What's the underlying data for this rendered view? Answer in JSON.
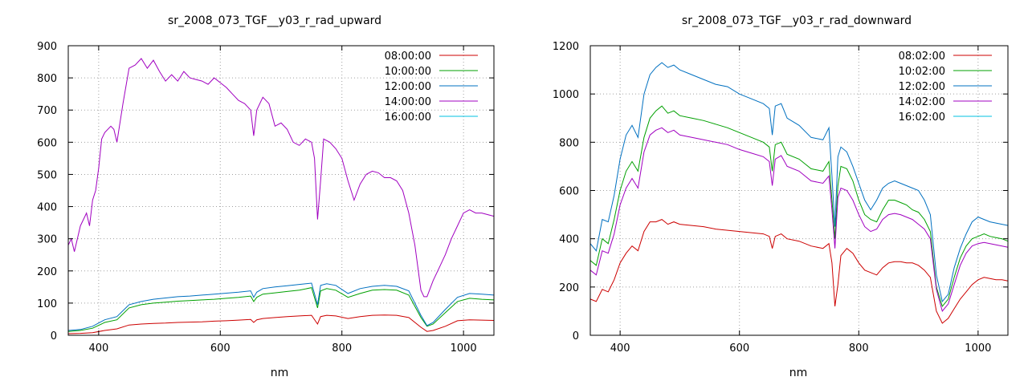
{
  "chart_data": [
    {
      "type": "line",
      "title": "sr_2008_073_TGF__y03_r_rad_upward",
      "xlabel": "nm",
      "ylabel": "",
      "xlim": [
        350,
        1050
      ],
      "ylim": [
        0,
        900
      ],
      "xticks": [
        400,
        600,
        800,
        1000
      ],
      "yticks": [
        0,
        100,
        200,
        300,
        400,
        500,
        600,
        700,
        800,
        900
      ],
      "grid": true,
      "legend_position": "top-right",
      "series": [
        {
          "name": "08:00:00",
          "color": "#cc0000",
          "x": [
            350,
            370,
            390,
            410,
            430,
            450,
            470,
            490,
            510,
            530,
            550,
            570,
            590,
            610,
            630,
            650,
            655,
            660,
            670,
            690,
            710,
            730,
            750,
            760,
            765,
            775,
            790,
            810,
            830,
            850,
            870,
            890,
            910,
            930,
            940,
            950,
            970,
            990,
            1010,
            1030,
            1050
          ],
          "y": [
            5,
            6,
            8,
            15,
            20,
            32,
            35,
            37,
            38,
            40,
            41,
            42,
            44,
            45,
            47,
            49,
            40,
            48,
            52,
            55,
            58,
            60,
            62,
            35,
            58,
            62,
            60,
            52,
            58,
            62,
            63,
            62,
            55,
            25,
            12,
            15,
            28,
            45,
            48,
            47,
            46
          ]
        },
        {
          "name": "10:00:00",
          "color": "#00a000",
          "x": [
            350,
            370,
            390,
            410,
            430,
            450,
            470,
            490,
            510,
            530,
            550,
            570,
            590,
            610,
            630,
            650,
            655,
            660,
            670,
            690,
            710,
            730,
            750,
            760,
            765,
            775,
            790,
            810,
            830,
            850,
            870,
            890,
            910,
            930,
            940,
            950,
            970,
            990,
            1010,
            1030,
            1050
          ],
          "y": [
            12,
            15,
            22,
            40,
            48,
            85,
            95,
            100,
            103,
            106,
            108,
            110,
            112,
            115,
            118,
            122,
            105,
            118,
            128,
            132,
            136,
            140,
            148,
            85,
            138,
            145,
            140,
            118,
            130,
            140,
            142,
            140,
            125,
            55,
            28,
            35,
            70,
            105,
            115,
            112,
            110
          ]
        },
        {
          "name": "12:00:00",
          "color": "#0070c0",
          "x": [
            350,
            370,
            390,
            410,
            430,
            450,
            470,
            490,
            510,
            530,
            550,
            570,
            590,
            610,
            630,
            650,
            655,
            660,
            670,
            690,
            710,
            730,
            750,
            760,
            765,
            775,
            790,
            810,
            830,
            850,
            870,
            890,
            910,
            930,
            940,
            950,
            970,
            990,
            1010,
            1030,
            1050
          ],
          "y": [
            15,
            18,
            28,
            48,
            58,
            95,
            105,
            112,
            116,
            120,
            122,
            125,
            128,
            131,
            134,
            138,
            118,
            134,
            145,
            150,
            154,
            158,
            162,
            95,
            155,
            160,
            155,
            130,
            145,
            152,
            155,
            152,
            138,
            62,
            30,
            40,
            80,
            118,
            130,
            128,
            125
          ]
        },
        {
          "name": "14:00:00",
          "color": "#a000c0",
          "x": [
            350,
            355,
            360,
            370,
            380,
            385,
            390,
            395,
            400,
            405,
            410,
            420,
            425,
            430,
            440,
            450,
            460,
            470,
            480,
            490,
            500,
            510,
            520,
            530,
            540,
            550,
            560,
            570,
            580,
            590,
            600,
            610,
            620,
            630,
            640,
            650,
            655,
            660,
            670,
            680,
            690,
            700,
            710,
            720,
            730,
            740,
            750,
            755,
            760,
            765,
            770,
            780,
            790,
            800,
            810,
            820,
            830,
            840,
            850,
            860,
            870,
            880,
            890,
            900,
            910,
            920,
            930,
            935,
            940,
            950,
            960,
            970,
            980,
            990,
            1000,
            1010,
            1020,
            1030,
            1040,
            1050
          ],
          "y": [
            280,
            300,
            260,
            340,
            380,
            340,
            420,
            450,
            520,
            610,
            630,
            650,
            640,
            600,
            720,
            830,
            840,
            860,
            830,
            855,
            820,
            790,
            810,
            790,
            820,
            800,
            795,
            790,
            780,
            800,
            785,
            770,
            750,
            730,
            720,
            700,
            620,
            700,
            740,
            720,
            650,
            660,
            640,
            600,
            590,
            610,
            600,
            550,
            360,
            480,
            610,
            600,
            580,
            550,
            480,
            420,
            470,
            500,
            510,
            505,
            490,
            490,
            480,
            450,
            380,
            280,
            140,
            120,
            120,
            170,
            210,
            250,
            300,
            340,
            380,
            390,
            380,
            380,
            375,
            370
          ]
        },
        {
          "name": "16:00:00",
          "color": "#00c0e0",
          "x": [],
          "y": []
        }
      ]
    },
    {
      "type": "line",
      "title": "sr_2008_073_TGF__y03_r_rad_downward",
      "xlabel": "nm",
      "ylabel": "",
      "xlim": [
        350,
        1050
      ],
      "ylim": [
        0,
        1200
      ],
      "xticks": [
        400,
        600,
        800,
        1000
      ],
      "yticks": [
        0,
        200,
        400,
        600,
        800,
        1000,
        1200
      ],
      "grid": true,
      "legend_position": "top-right",
      "series": [
        {
          "name": "08:02:00",
          "color": "#cc0000",
          "x": [
            350,
            360,
            370,
            380,
            390,
            400,
            410,
            420,
            430,
            440,
            450,
            460,
            470,
            480,
            490,
            500,
            520,
            540,
            560,
            580,
            600,
            620,
            640,
            650,
            655,
            660,
            670,
            680,
            700,
            720,
            740,
            750,
            755,
            760,
            765,
            770,
            780,
            790,
            800,
            810,
            820,
            830,
            840,
            850,
            860,
            870,
            880,
            890,
            900,
            910,
            920,
            930,
            940,
            950,
            960,
            970,
            980,
            990,
            1000,
            1010,
            1020,
            1030,
            1040,
            1050
          ],
          "y": [
            150,
            140,
            190,
            180,
            230,
            300,
            340,
            370,
            350,
            430,
            470,
            470,
            480,
            460,
            470,
            460,
            455,
            450,
            440,
            435,
            430,
            425,
            420,
            410,
            360,
            410,
            420,
            400,
            390,
            370,
            360,
            380,
            300,
            120,
            210,
            330,
            360,
            340,
            300,
            270,
            260,
            250,
            280,
            300,
            305,
            305,
            300,
            300,
            290,
            270,
            240,
            100,
            50,
            70,
            110,
            150,
            180,
            210,
            230,
            240,
            235,
            230,
            230,
            225
          ]
        },
        {
          "name": "10:02:00",
          "color": "#00a000",
          "x": [
            350,
            360,
            370,
            380,
            390,
            400,
            410,
            420,
            430,
            440,
            450,
            460,
            470,
            480,
            490,
            500,
            520,
            540,
            560,
            580,
            600,
            620,
            640,
            650,
            655,
            660,
            670,
            680,
            700,
            720,
            740,
            750,
            755,
            760,
            765,
            770,
            780,
            790,
            800,
            810,
            820,
            830,
            840,
            850,
            860,
            870,
            880,
            890,
            900,
            910,
            920,
            930,
            940,
            950,
            960,
            970,
            980,
            990,
            1000,
            1010,
            1020,
            1030,
            1040,
            1050
          ],
          "y": [
            310,
            290,
            400,
            380,
            480,
            600,
            680,
            720,
            680,
            820,
            900,
            930,
            950,
            920,
            930,
            910,
            900,
            890,
            875,
            860,
            840,
            820,
            800,
            780,
            680,
            790,
            800,
            750,
            730,
            690,
            680,
            720,
            560,
            400,
            620,
            700,
            690,
            640,
            560,
            500,
            480,
            470,
            520,
            560,
            560,
            550,
            540,
            520,
            510,
            480,
            430,
            200,
            120,
            150,
            240,
            320,
            370,
            400,
            410,
            420,
            410,
            405,
            400,
            390
          ]
        },
        {
          "name": "12:02:00",
          "color": "#0070c0",
          "x": [
            350,
            360,
            370,
            380,
            390,
            400,
            410,
            420,
            430,
            440,
            450,
            460,
            470,
            480,
            490,
            500,
            520,
            540,
            560,
            580,
            600,
            620,
            640,
            650,
            655,
            660,
            670,
            680,
            700,
            720,
            740,
            750,
            755,
            760,
            765,
            770,
            780,
            790,
            800,
            810,
            820,
            830,
            840,
            850,
            860,
            870,
            880,
            890,
            900,
            910,
            920,
            930,
            940,
            950,
            960,
            970,
            980,
            990,
            1000,
            1010,
            1020,
            1030,
            1040,
            1050
          ],
          "y": [
            380,
            350,
            480,
            470,
            580,
            730,
            830,
            870,
            820,
            1000,
            1080,
            1110,
            1130,
            1110,
            1120,
            1100,
            1080,
            1060,
            1040,
            1030,
            1000,
            980,
            960,
            940,
            830,
            950,
            960,
            900,
            870,
            820,
            810,
            860,
            660,
            450,
            740,
            780,
            760,
            700,
            630,
            560,
            520,
            560,
            610,
            630,
            640,
            630,
            620,
            610,
            600,
            560,
            500,
            250,
            140,
            170,
            280,
            360,
            420,
            470,
            490,
            480,
            470,
            465,
            460,
            455
          ]
        },
        {
          "name": "14:02:00",
          "color": "#a000c0",
          "x": [
            350,
            360,
            370,
            380,
            390,
            400,
            410,
            420,
            430,
            440,
            450,
            460,
            470,
            480,
            490,
            500,
            520,
            540,
            560,
            580,
            600,
            620,
            640,
            650,
            655,
            660,
            670,
            680,
            700,
            720,
            740,
            750,
            755,
            760,
            765,
            770,
            780,
            790,
            800,
            810,
            820,
            830,
            840,
            850,
            860,
            870,
            880,
            890,
            900,
            910,
            920,
            930,
            940,
            950,
            960,
            970,
            980,
            990,
            1000,
            1010,
            1020,
            1030,
            1040,
            1050
          ],
          "y": [
            270,
            250,
            350,
            340,
            420,
            540,
            610,
            650,
            610,
            760,
            830,
            850,
            860,
            840,
            850,
            830,
            820,
            810,
            800,
            790,
            770,
            755,
            740,
            720,
            620,
            730,
            745,
            700,
            680,
            640,
            630,
            660,
            520,
            360,
            570,
            610,
            600,
            560,
            500,
            450,
            430,
            440,
            480,
            500,
            505,
            500,
            490,
            480,
            460,
            440,
            400,
            190,
            100,
            130,
            210,
            290,
            340,
            370,
            380,
            385,
            380,
            375,
            370,
            365
          ]
        },
        {
          "name": "16:02:00",
          "color": "#00c0e0",
          "x": [],
          "y": []
        }
      ]
    }
  ]
}
